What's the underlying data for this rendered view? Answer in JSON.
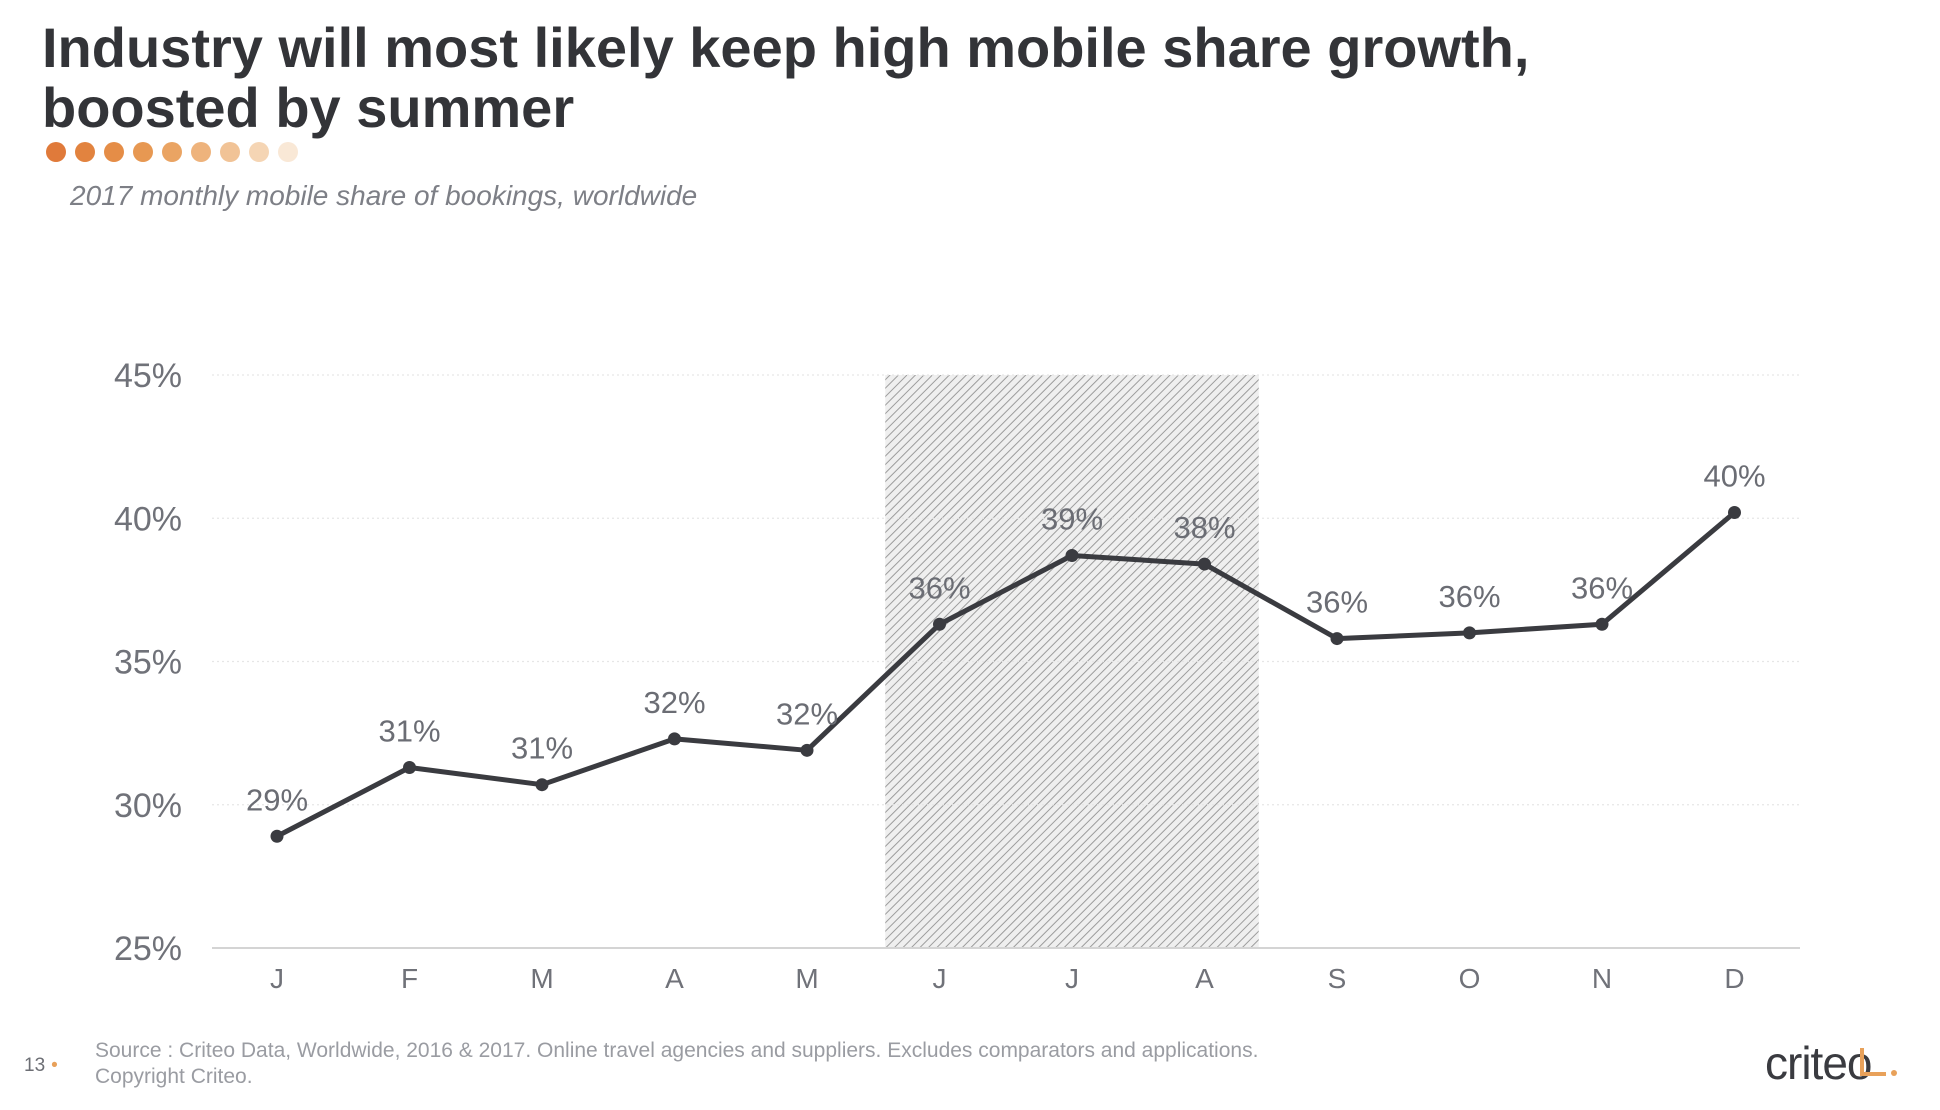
{
  "header": {
    "title_line1": "Industry will most likely keep high mobile share growth,",
    "title_line2": "boosted by summer",
    "subtitle": "2017 monthly mobile share of bookings, worldwide",
    "dot_colors": [
      "#e07a3a",
      "#e2833f",
      "#e58d47",
      "#e79852",
      "#eaa463",
      "#eeb37c",
      "#f1c396",
      "#f5d5b4",
      "#f9e8d6"
    ]
  },
  "chart_data": {
    "type": "line",
    "categories": [
      "J",
      "F",
      "M",
      "A",
      "M",
      "J",
      "J",
      "A",
      "S",
      "O",
      "N",
      "D"
    ],
    "series": [
      {
        "values": [
          28.9,
          31.3,
          30.7,
          32.3,
          31.9,
          36.3,
          38.7,
          38.4,
          35.8,
          36.0,
          36.3,
          40.2
        ],
        "labels": [
          "29%",
          "31%",
          "31%",
          "32%",
          "32%",
          "36%",
          "39%",
          "38%",
          "36%",
          "36%",
          "36%",
          "40%"
        ],
        "color": "#3a3b40"
      }
    ],
    "ylim": [
      25,
      45
    ],
    "yticks": [
      25,
      30,
      35,
      40,
      45
    ],
    "ytick_labels": [
      "25%",
      "30%",
      "35%",
      "40%",
      "45%"
    ],
    "grid": true,
    "highlight_band": {
      "from_category_index": 5,
      "to_category_index": 7,
      "pattern": "diagonal-hatch"
    }
  },
  "footer": {
    "source_line1": "Source : Criteo Data, Worldwide, 2016 & 2017. Online travel agencies and suppliers. Excludes comparators and applications.",
    "source_line2": "Copyright Criteo.",
    "page_number": "13",
    "logo_text": "criteo",
    "accent_color": "#e8a15a"
  }
}
